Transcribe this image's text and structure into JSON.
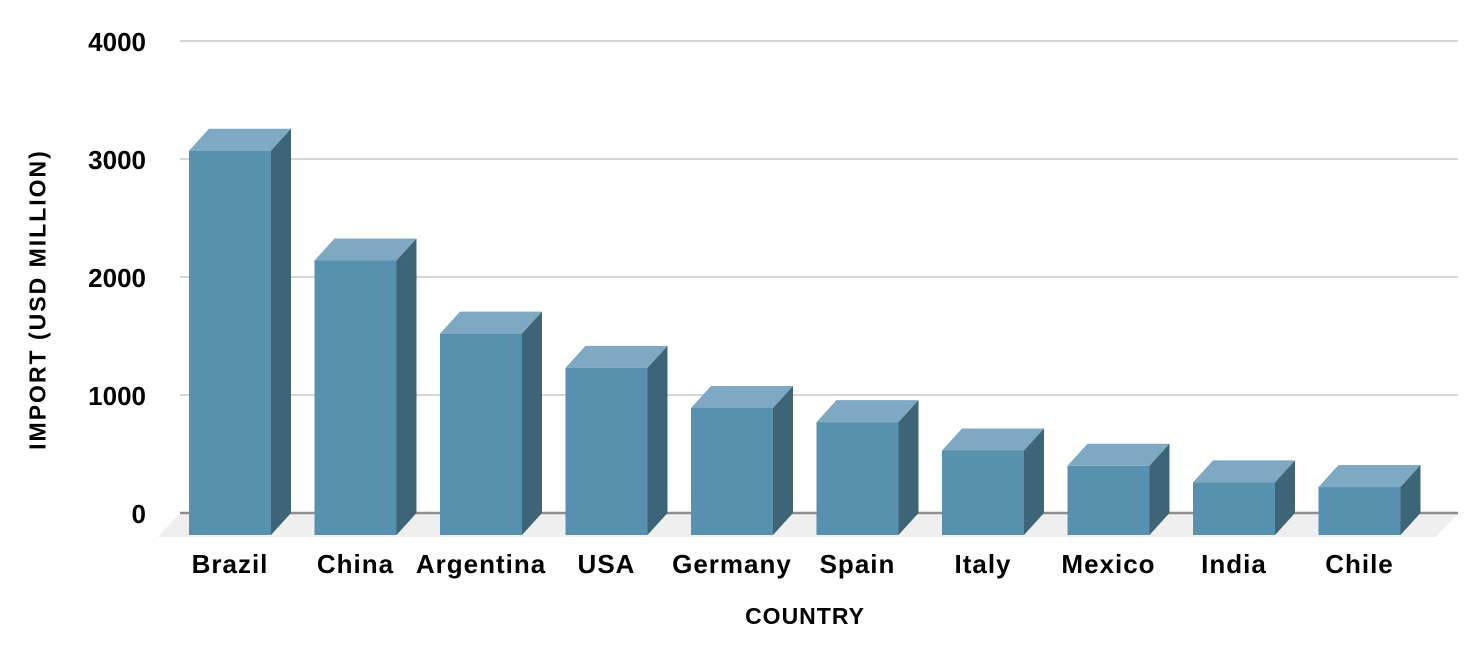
{
  "chart_data": {
    "type": "bar",
    "variant": "3d-column",
    "title": "",
    "xlabel": "COUNTRY",
    "ylabel": "IMPORT (USD MILLION)",
    "categories": [
      "Brazil",
      "China",
      "Argentina",
      "USA",
      "Germany",
      "Spain",
      "Italy",
      "Mexico",
      "India",
      "Chile"
    ],
    "values": [
      3070,
      2140,
      1520,
      1230,
      890,
      770,
      530,
      400,
      260,
      220
    ],
    "ylim": [
      0,
      4000
    ],
    "yticks": [
      0,
      1000,
      2000,
      3000,
      4000
    ],
    "grid": true,
    "legend": false,
    "colors": {
      "bar_front": "#5891AF",
      "bar_top": "#7FA9C2",
      "bar_side": "#3E6478",
      "gridline": "#D6D6D6",
      "axis_line": "#8F8F8F",
      "floor": "#EFEFEF",
      "text": "#000000",
      "background": "#FFFFFF"
    }
  }
}
